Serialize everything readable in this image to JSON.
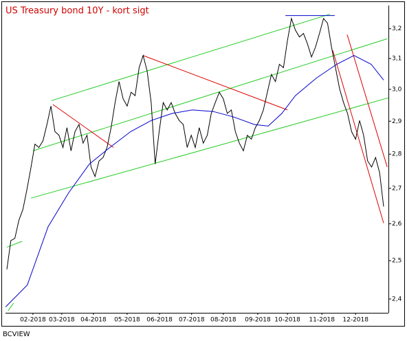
{
  "chart_data": {
    "type": "line",
    "title": "US Treasury bond 10Y - kort sigt",
    "source": "BCVIEW",
    "log_scale": true,
    "grid": false,
    "xlim": [
      -0.34,
      95.2
    ],
    "ylim": [
      2.365,
      3.28
    ],
    "yticks": [
      {
        "value": 2.4,
        "label": "2,4"
      },
      {
        "value": 2.5,
        "label": "2,5"
      },
      {
        "value": 2.6,
        "label": "2,6"
      },
      {
        "value": 2.7,
        "label": "2,7"
      },
      {
        "value": 2.8,
        "label": "2,8"
      },
      {
        "value": 2.9,
        "label": "2,9"
      },
      {
        "value": 3.0,
        "label": "3,0"
      },
      {
        "value": 3.1,
        "label": "3,1"
      },
      {
        "value": 3.2,
        "label": "3,2"
      }
    ],
    "xticks": [
      {
        "value": 6.5,
        "label": "02-2018"
      },
      {
        "value": 13.7,
        "label": "03-2018"
      },
      {
        "value": 21.6,
        "label": "04-2018"
      },
      {
        "value": 30,
        "label": "05-2018"
      },
      {
        "value": 38.1,
        "label": "06-2018"
      },
      {
        "value": 46.1,
        "label": "07-2018"
      },
      {
        "value": 54,
        "label": "08-2018"
      },
      {
        "value": 62.6,
        "label": "09-2018"
      },
      {
        "value": 70,
        "label": "10-2018"
      },
      {
        "value": 78.6,
        "label": "11-2018"
      },
      {
        "value": 87,
        "label": "12-2018"
      }
    ],
    "series": [
      {
        "color": "#000000",
        "values": [
          2.477,
          2.554,
          2.56,
          2.61,
          2.64,
          2.696,
          2.76,
          2.83,
          2.82,
          2.84,
          2.89,
          2.947,
          2.868,
          2.857,
          2.82,
          2.88,
          2.81,
          2.868,
          2.89,
          2.833,
          2.857,
          2.762,
          2.734,
          2.78,
          2.79,
          2.82,
          2.88,
          2.958,
          3.025,
          2.97,
          2.947,
          2.991,
          2.98,
          3.07,
          3.11,
          3.059,
          2.958,
          2.771,
          2.868,
          2.958,
          2.935,
          2.958,
          2.924,
          2.902,
          2.89,
          2.82,
          2.857,
          2.82,
          2.88,
          2.833,
          2.857,
          2.924,
          2.958,
          2.991,
          2.97,
          2.924,
          2.935,
          2.868,
          2.833,
          2.81,
          2.857,
          2.845,
          2.88,
          2.902,
          2.935,
          2.991,
          3.048,
          3.025,
          3.081,
          3.07,
          3.16,
          3.235,
          3.195,
          3.172,
          3.184,
          3.149,
          3.105,
          3.138,
          3.184,
          3.235,
          3.219,
          3.138,
          3.07,
          3.002,
          2.958,
          2.924,
          2.868,
          2.845,
          2.902,
          2.857,
          2.78,
          2.762,
          2.79,
          2.745,
          2.648
        ]
      },
      {
        "color": "#0000cc",
        "x": [
          -0.3,
          5.1,
          10.3,
          15.4,
          20.6,
          25.7,
          30.9,
          36,
          41.2,
          46.3,
          51.5,
          56.6,
          61.7,
          65.2,
          68.6,
          72,
          77.2,
          82.3,
          86.6,
          90.9,
          94
        ],
        "values": [
          2.38,
          2.436,
          2.592,
          2.687,
          2.771,
          2.82,
          2.868,
          2.902,
          2.924,
          2.935,
          2.93,
          2.913,
          2.89,
          2.885,
          2.924,
          2.98,
          3.036,
          3.081,
          3.11,
          3.081,
          3.03
        ]
      }
    ],
    "trend_lines": [
      {
        "color": "#22cc22",
        "x": [
          11.1,
          80.6
        ],
        "values": [
          2.964,
          3.25
        ]
      },
      {
        "color": "#22cc22",
        "x": [
          6.5,
          94.9
        ],
        "values": [
          2.81,
          3.166
        ]
      },
      {
        "color": "#22cc22",
        "x": [
          6,
          95.2
        ],
        "values": [
          2.672,
          2.973
        ]
      },
      {
        "color": "#22cc22",
        "x": [
          0,
          3.8
        ],
        "values": [
          2.536,
          2.552
        ]
      },
      {
        "color": "#22cc22",
        "x": [
          0.3,
          1.7
        ],
        "values": [
          2.37,
          2.39
        ]
      },
      {
        "color": "#dd0000",
        "x": [
          11.5,
          26.6
        ],
        "values": [
          2.952,
          2.82
        ]
      },
      {
        "color": "#dd0000",
        "x": [
          34,
          70
        ],
        "values": [
          3.11,
          2.935
        ]
      },
      {
        "color": "#dd0000",
        "x": [
          81.3,
          94
        ],
        "values": [
          3.127,
          2.602
        ]
      },
      {
        "color": "#dd0000",
        "x": [
          84.9,
          94.9
        ],
        "values": [
          3.18,
          2.762
        ]
      },
      {
        "color": "#0000cc",
        "x": [
          69.5,
          81.8
        ],
        "values": [
          3.245,
          3.245
        ]
      }
    ]
  }
}
